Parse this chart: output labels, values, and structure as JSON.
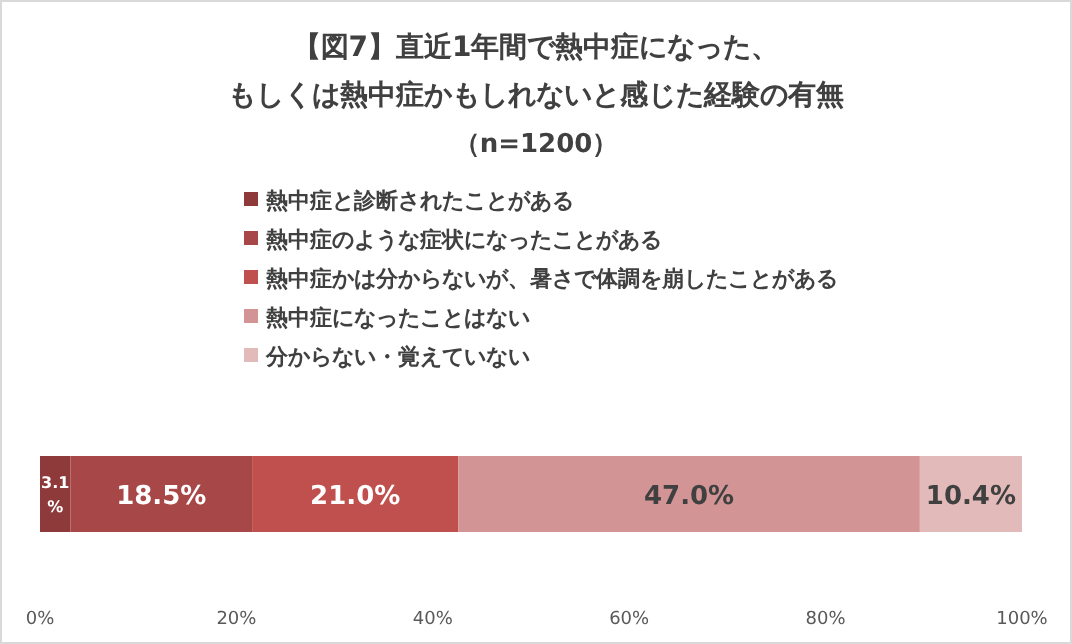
{
  "chart_data": {
    "type": "bar",
    "orientation": "horizontal",
    "stacked": true,
    "title": "【図7】直近1年間で熱中症になった、もしくは熱中症かもしれないと感じた経験の有無",
    "subtitle": "（n=1200）",
    "categories": [
      null
    ],
    "series": [
      {
        "name": "熱中症と診断されたことがある",
        "color": "#8e3a3a",
        "values": [
          3.1
        ],
        "value_labels": [
          "3.1%"
        ]
      },
      {
        "name": "熱中症のような症状になったことがある",
        "color": "#a84747",
        "values": [
          18.5
        ],
        "value_labels": [
          "18.5%"
        ]
      },
      {
        "name": "熱中症かは分からないが、暑さで体調を崩したことがある",
        "color": "#c0504d",
        "values": [
          21.0
        ],
        "value_labels": [
          "21.0%"
        ]
      },
      {
        "name": "熱中症になったことはない",
        "color": "#d29494",
        "values": [
          47.0
        ],
        "value_labels": [
          "47.0%"
        ]
      },
      {
        "name": "分からない・覚えていない",
        "color": "#e3baba",
        "values": [
          10.4
        ],
        "value_labels": [
          "10.4%"
        ]
      }
    ],
    "xlim": [
      0,
      100
    ],
    "xticks": [
      {
        "value": 0,
        "label": "0%"
      },
      {
        "value": 20,
        "label": "20%"
      },
      {
        "value": 40,
        "label": "40%"
      },
      {
        "value": 60,
        "label": "60%"
      },
      {
        "value": 80,
        "label": "80%"
      },
      {
        "value": 100,
        "label": "100%"
      }
    ],
    "legend": "top",
    "grid": false
  }
}
